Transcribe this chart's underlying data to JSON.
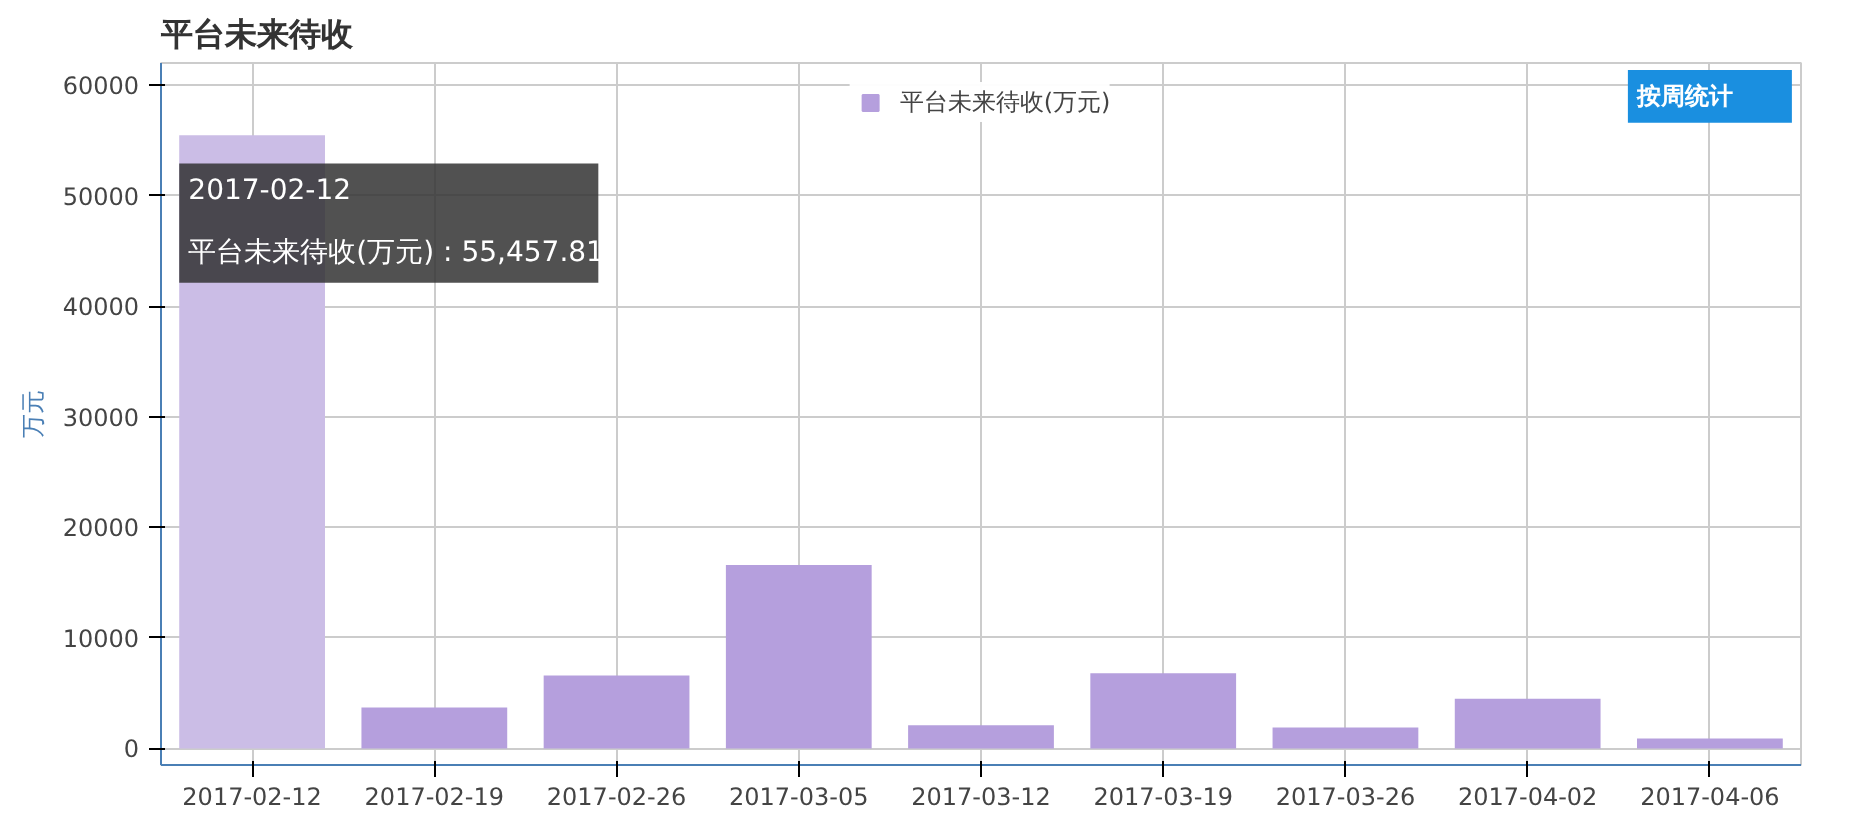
{
  "chart_data": {
    "type": "bar",
    "title": "平台未来待收",
    "ylabel": "万元",
    "categories": [
      "2017-02-12",
      "2017-02-19",
      "2017-02-26",
      "2017-03-05",
      "2017-03-12",
      "2017-03-19",
      "2017-03-26",
      "2017-04-02",
      "2017-04-06"
    ],
    "series": [
      {
        "name": "平台未来待收(万元)",
        "color": "#b59fdd",
        "colors": [
          "#cbbde6",
          "#b59fdd",
          "#b59fdd",
          "#b59fdd",
          "#b59fdd",
          "#b59fdd",
          "#b59fdd",
          "#b59fdd",
          "#b59fdd"
        ],
        "values": [
          55457.81,
          3700,
          6600,
          16600,
          2100,
          6800,
          1900,
          4500,
          900
        ]
      }
    ],
    "ylim": [
      -1500,
      62000
    ],
    "yticks": [
      0,
      10000,
      20000,
      30000,
      40000,
      50000,
      60000
    ],
    "grid": true,
    "legend": "top",
    "annotations": [
      {
        "text": "2017-02-12\n平台未来待收(万元) : 55,457.81",
        "x": "2017-02-12",
        "y": 55457.81
      },
      "按周统计"
    ]
  }
}
